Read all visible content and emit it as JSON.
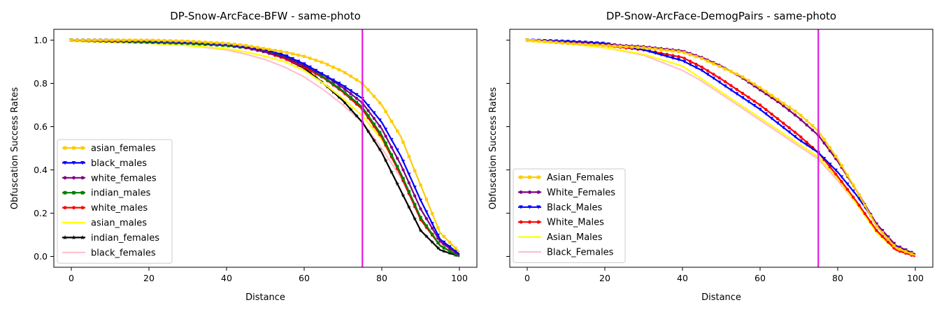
{
  "chart_data": [
    {
      "type": "line",
      "title": "DP-Snow-ArcFace-BFW - same-photo",
      "xlabel": "Distance",
      "ylabel": "Obfuscation Success Rates",
      "xlim": [
        -4.5,
        104.5
      ],
      "ylim": [
        -0.05,
        1.05
      ],
      "xticks": [
        0,
        20,
        40,
        60,
        80,
        100
      ],
      "xtick_labels": [
        "0",
        "20",
        "40",
        "60",
        "80",
        "100"
      ],
      "yticks": [
        0.0,
        0.2,
        0.4,
        0.6,
        0.8,
        1.0
      ],
      "ytick_labels": [
        "0.0",
        "0.2",
        "0.4",
        "0.6",
        "0.8",
        "1.0"
      ],
      "grid": false,
      "legend_position": "lower-left",
      "vline": {
        "x": 75,
        "color": "#e31ae3"
      },
      "x": [
        0,
        10,
        20,
        30,
        40,
        45,
        50,
        55,
        60,
        65,
        70,
        75,
        80,
        85,
        90,
        95,
        100
      ],
      "series": [
        {
          "name": "asian_females",
          "color": "#ffcc00",
          "marker": "square",
          "values": [
            1.0,
            1.0,
            1.0,
            0.995,
            0.985,
            0.975,
            0.96,
            0.945,
            0.925,
            0.895,
            0.855,
            0.8,
            0.7,
            0.55,
            0.33,
            0.11,
            0.02
          ]
        },
        {
          "name": "black_males",
          "color": "#0000ff",
          "marker": "triangle-down",
          "values": [
            1.0,
            1.0,
            0.995,
            0.99,
            0.98,
            0.97,
            0.955,
            0.93,
            0.89,
            0.84,
            0.79,
            0.73,
            0.62,
            0.46,
            0.26,
            0.08,
            0.01
          ]
        },
        {
          "name": "white_females",
          "color": "#800080",
          "marker": "circle",
          "values": [
            1.0,
            0.995,
            0.995,
            0.99,
            0.98,
            0.965,
            0.945,
            0.92,
            0.88,
            0.84,
            0.78,
            0.71,
            0.59,
            0.42,
            0.22,
            0.07,
            0.005
          ]
        },
        {
          "name": "indian_males",
          "color": "#008000",
          "marker": "square",
          "values": [
            1.0,
            0.995,
            0.99,
            0.985,
            0.975,
            0.965,
            0.95,
            0.925,
            0.885,
            0.83,
            0.765,
            0.69,
            0.56,
            0.38,
            0.18,
            0.05,
            0.0
          ]
        },
        {
          "name": "white_males",
          "color": "#ff0000",
          "marker": "circle",
          "values": [
            1.0,
            0.995,
            0.995,
            0.99,
            0.98,
            0.965,
            0.945,
            0.915,
            0.875,
            0.825,
            0.76,
            0.68,
            0.55,
            0.37,
            0.17,
            0.05,
            0.0
          ]
        },
        {
          "name": "asian_males",
          "color": "#ffff00",
          "marker": "none",
          "values": [
            0.995,
            0.99,
            0.985,
            0.975,
            0.96,
            0.945,
            0.925,
            0.9,
            0.86,
            0.8,
            0.73,
            0.65,
            0.54,
            0.38,
            0.18,
            0.05,
            0.0
          ]
        },
        {
          "name": "indian_females",
          "color": "#000000",
          "marker": "star",
          "values": [
            1.0,
            0.995,
            0.99,
            0.985,
            0.975,
            0.965,
            0.945,
            0.915,
            0.87,
            0.8,
            0.72,
            0.62,
            0.48,
            0.3,
            0.12,
            0.03,
            0.0
          ]
        },
        {
          "name": "black_females",
          "color": "#ffc0cb",
          "marker": "none",
          "values": [
            0.995,
            0.99,
            0.985,
            0.975,
            0.955,
            0.935,
            0.91,
            0.875,
            0.83,
            0.77,
            0.7,
            0.62,
            0.5,
            0.36,
            0.18,
            0.06,
            0.0
          ]
        }
      ]
    },
    {
      "type": "line",
      "title": "DP-Snow-ArcFace-DemogPairs - same-photo",
      "xlabel": "Distance",
      "ylabel": "Obfuscation Success Rates",
      "xlim": [
        -4.5,
        104.5
      ],
      "ylim": [
        -0.05,
        1.05
      ],
      "xticks": [
        0,
        20,
        40,
        60,
        80,
        100
      ],
      "xtick_labels": [
        "0",
        "20",
        "40",
        "60",
        "80",
        "100"
      ],
      "yticks": [
        0.0,
        0.2,
        0.4,
        0.6,
        0.8,
        1.0
      ],
      "ytick_labels": [],
      "grid": false,
      "legend_position": "lower-left",
      "vline": {
        "x": 75,
        "color": "#e31ae3"
      },
      "x": [
        0,
        10,
        20,
        30,
        40,
        45,
        50,
        55,
        60,
        65,
        70,
        75,
        80,
        85,
        90,
        95,
        100
      ],
      "series": [
        {
          "name": "Asian_Females",
          "color": "#ffcc00",
          "marker": "square",
          "values": [
            1.0,
            0.985,
            0.975,
            0.965,
            0.945,
            0.915,
            0.875,
            0.835,
            0.78,
            0.72,
            0.66,
            0.58,
            0.45,
            0.3,
            0.14,
            0.04,
            0.005
          ]
        },
        {
          "name": "White_Females",
          "color": "#800080",
          "marker": "circle",
          "values": [
            1.0,
            0.99,
            0.98,
            0.97,
            0.95,
            0.92,
            0.88,
            0.83,
            0.77,
            0.71,
            0.64,
            0.56,
            0.44,
            0.3,
            0.15,
            0.05,
            0.01
          ]
        },
        {
          "name": "Black_Males",
          "color": "#0000ff",
          "marker": "triangle-down",
          "values": [
            1.0,
            0.995,
            0.985,
            0.955,
            0.905,
            0.86,
            0.8,
            0.74,
            0.68,
            0.61,
            0.54,
            0.48,
            0.39,
            0.28,
            0.15,
            0.05,
            0.01
          ]
        },
        {
          "name": "White_Males",
          "color": "#ff0000",
          "marker": "circle",
          "values": [
            1.0,
            0.99,
            0.975,
            0.955,
            0.92,
            0.875,
            0.82,
            0.76,
            0.7,
            0.63,
            0.56,
            0.48,
            0.37,
            0.25,
            0.12,
            0.03,
            0.0
          ]
        },
        {
          "name": "Asian_Males",
          "color": "#ffff00",
          "marker": "none",
          "values": [
            0.995,
            0.985,
            0.965,
            0.935,
            0.88,
            0.82,
            0.76,
            0.7,
            0.64,
            0.58,
            0.52,
            0.46,
            0.36,
            0.24,
            0.11,
            0.03,
            0.0
          ]
        },
        {
          "name": "Black_Females",
          "color": "#ffc0cb",
          "marker": "none",
          "values": [
            0.995,
            0.985,
            0.965,
            0.93,
            0.86,
            0.81,
            0.75,
            0.69,
            0.63,
            0.57,
            0.51,
            0.45,
            0.35,
            0.24,
            0.12,
            0.04,
            0.0
          ]
        }
      ]
    }
  ]
}
